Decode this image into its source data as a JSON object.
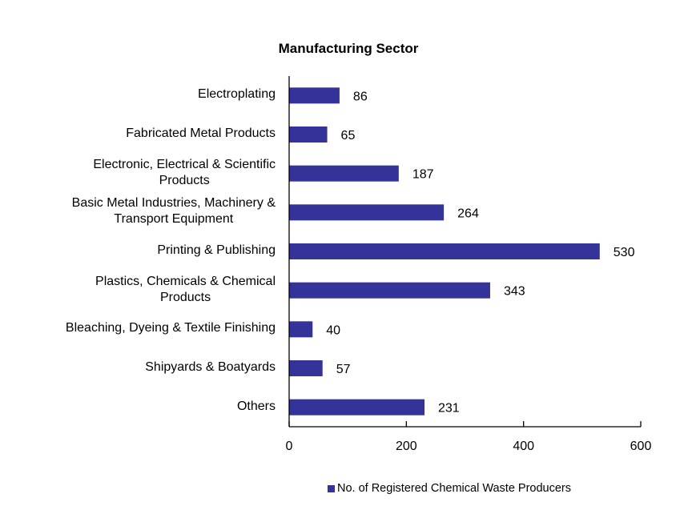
{
  "chart_data": {
    "type": "bar",
    "orientation": "horizontal",
    "title": "Manufacturing Sector",
    "categories": [
      "Electroplating",
      "Fabricated Metal Products",
      "Electronic, Electrical & Scientific\nProducts",
      "Basic Metal Industries, Machinery &\nTransport Equipment",
      "Printing & Publishing",
      "Plastics, Chemicals & Chemical\nProducts",
      "Bleaching, Dyeing & Textile Finishing",
      "Shipyards & Boatyards",
      "Others"
    ],
    "series": [
      {
        "name": "No. of Registered Chemical Waste Producers",
        "values": [
          86,
          65,
          187,
          264,
          530,
          343,
          40,
          57,
          231
        ],
        "color": "#333399"
      }
    ],
    "xlim": [
      0,
      600
    ],
    "xticks": [
      0,
      200,
      400,
      600
    ],
    "xlabel": "",
    "ylabel": "",
    "grid": false,
    "data_labels": true,
    "legend_position": "bottom"
  }
}
